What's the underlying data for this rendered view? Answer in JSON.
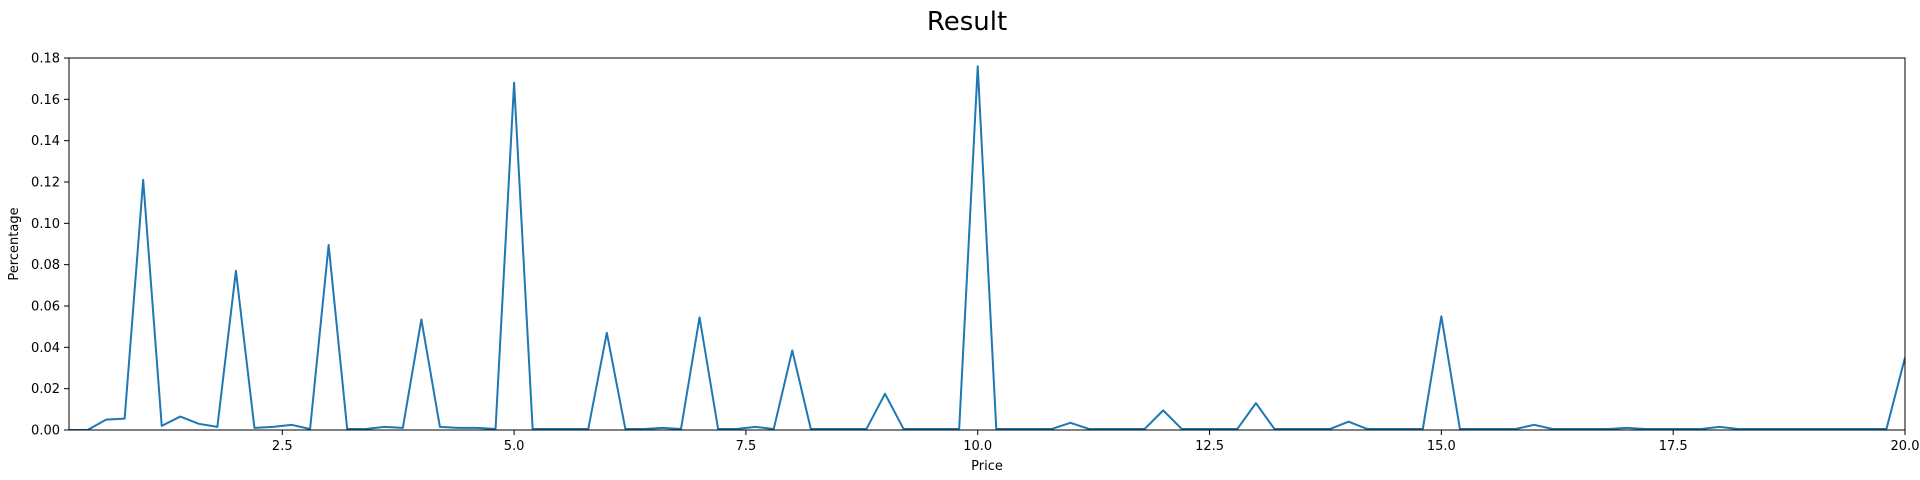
{
  "chart_data": {
    "type": "line",
    "title": "Result",
    "xlabel": "Price",
    "ylabel": "Percentage",
    "xlim": [
      0.2,
      20.0
    ],
    "ylim": [
      0,
      0.18
    ],
    "xticks": [
      "2.5",
      "5.0",
      "7.5",
      "10.0",
      "12.5",
      "15.0",
      "17.5",
      "20.0"
    ],
    "yticks": [
      "0.00",
      "0.02",
      "0.04",
      "0.06",
      "0.08",
      "0.10",
      "0.12",
      "0.14",
      "0.16",
      "0.18"
    ],
    "grid": false,
    "legend": false,
    "line_color": "#1f77b4",
    "x": [
      0.2,
      0.4,
      0.6,
      0.8,
      1.0,
      1.2,
      1.4,
      1.6,
      1.8,
      2.0,
      2.2,
      2.4,
      2.6,
      2.8,
      3.0,
      3.2,
      3.4,
      3.6,
      3.8,
      4.0,
      4.2,
      4.4,
      4.6,
      4.8,
      5.0,
      5.2,
      5.4,
      5.6,
      5.8,
      6.0,
      6.2,
      6.4,
      6.6,
      6.8,
      7.0,
      7.2,
      7.4,
      7.6,
      7.8,
      8.0,
      8.2,
      8.4,
      8.6,
      8.8,
      9.0,
      9.2,
      9.4,
      9.6,
      9.8,
      10.0,
      10.2,
      10.4,
      10.6,
      10.8,
      11.0,
      11.2,
      11.4,
      11.6,
      11.8,
      12.0,
      12.2,
      12.4,
      12.6,
      12.8,
      13.0,
      13.2,
      13.4,
      13.6,
      13.8,
      14.0,
      14.2,
      14.4,
      14.6,
      14.8,
      15.0,
      15.2,
      15.4,
      15.6,
      15.8,
      16.0,
      16.2,
      16.4,
      16.6,
      16.8,
      17.0,
      17.2,
      17.4,
      17.6,
      17.8,
      18.0,
      18.2,
      18.4,
      18.6,
      18.8,
      19.0,
      19.2,
      19.4,
      19.6,
      19.8,
      20.0
    ],
    "y": [
      0.0,
      0.0,
      0.005,
      0.0055,
      0.121,
      0.002,
      0.0065,
      0.003,
      0.0015,
      0.077,
      0.001,
      0.0015,
      0.0025,
      0.0005,
      0.0895,
      0.0005,
      0.0005,
      0.0015,
      0.001,
      0.0535,
      0.0015,
      0.001,
      0.001,
      0.0005,
      0.168,
      0.0005,
      0.0005,
      0.0005,
      0.0005,
      0.047,
      0.0005,
      0.0005,
      0.001,
      0.0005,
      0.0545,
      0.0005,
      0.0005,
      0.0015,
      0.0005,
      0.0385,
      0.0005,
      0.0005,
      0.0005,
      0.0005,
      0.0175,
      0.0005,
      0.0005,
      0.0005,
      0.0005,
      0.176,
      0.0005,
      0.0005,
      0.0005,
      0.0005,
      0.0035,
      0.0005,
      0.0005,
      0.0005,
      0.0005,
      0.0095,
      0.0005,
      0.0005,
      0.0005,
      0.0005,
      0.013,
      0.0005,
      0.0005,
      0.0005,
      0.0005,
      0.004,
      0.0005,
      0.0005,
      0.0005,
      0.0005,
      0.055,
      0.0005,
      0.0005,
      0.0005,
      0.0005,
      0.0025,
      0.0005,
      0.0005,
      0.0005,
      0.0005,
      0.001,
      0.0005,
      0.0005,
      0.0005,
      0.0005,
      0.0015,
      0.0005,
      0.0005,
      0.0005,
      0.0005,
      0.0005,
      0.0005,
      0.0005,
      0.0005,
      0.0005,
      0.035
    ]
  }
}
